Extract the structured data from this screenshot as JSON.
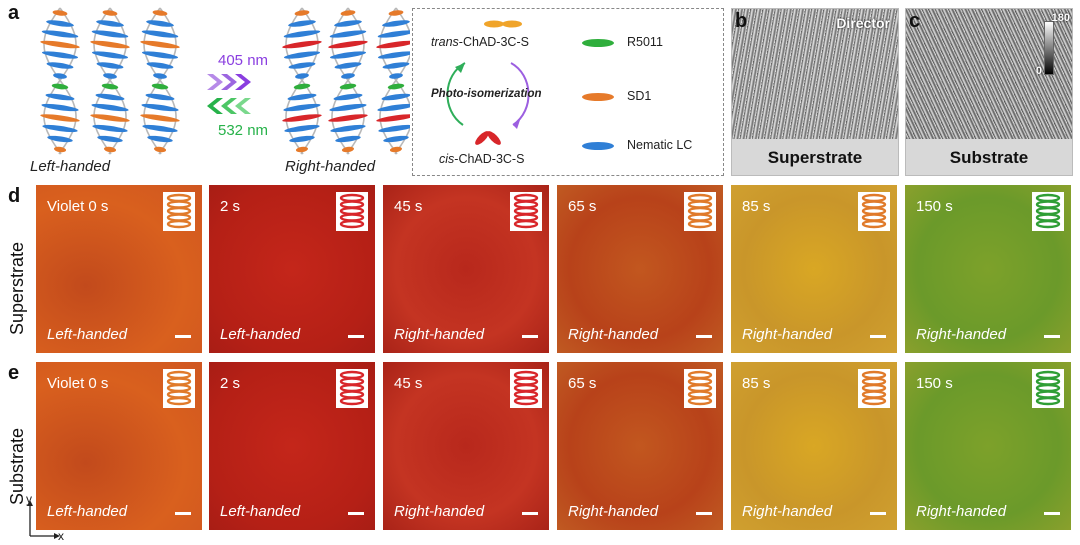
{
  "panel_letters": [
    "a",
    "b",
    "c",
    "d",
    "e"
  ],
  "panel_a": {
    "left_label": "Left-handed",
    "right_label": "Right-handed",
    "violet_wavelength": "405 nm",
    "green_wavelength": "532 nm"
  },
  "legend": {
    "trans": "trans-ChAD-3C-S",
    "trans_italic": "trans",
    "trans_rest": "-ChAD-3C-S",
    "cis_italic": "cis",
    "cis_rest": "-ChAD-3C-S",
    "photo": "Photo-isomerization",
    "r5011": "R5011",
    "sd1": "SD1",
    "nematic": "Nematic LC"
  },
  "panel_b": {
    "corner": "Director",
    "label": "Superstrate"
  },
  "panel_c": {
    "scale_max": "180",
    "scale_min": "0",
    "label": "Substrate"
  },
  "rows": [
    {
      "label": "Superstrate",
      "times": [
        "Violet 0 s",
        "2 s",
        "45 s",
        "65 s",
        "85 s",
        "150 s"
      ],
      "handedness": [
        "Left-handed",
        "Left-handed",
        "Right-handed",
        "Right-handed",
        "Right-handed",
        "Right-handed"
      ]
    },
    {
      "label": "Substrate",
      "times": [
        "Violet 0 s",
        "2 s",
        "45 s",
        "65 s",
        "85 s",
        "150 s"
      ],
      "handedness": [
        "Left-handed",
        "Left-handed",
        "Right-handed",
        "Right-handed",
        "Right-handed",
        "Right-handed"
      ]
    }
  ],
  "axes": {
    "y": "y",
    "x": "x"
  },
  "colors": {
    "violet": "#8a3ee0",
    "green": "#27b24a",
    "helix_orange": "#e07a2a",
    "helix_red": "#d8262a",
    "helix_green": "#2f9e35",
    "rod_blue": "#2f7fd6",
    "rod_green": "#2fae3c",
    "rod_orange": "#e67a2a",
    "rod_red": "#d8262a"
  }
}
